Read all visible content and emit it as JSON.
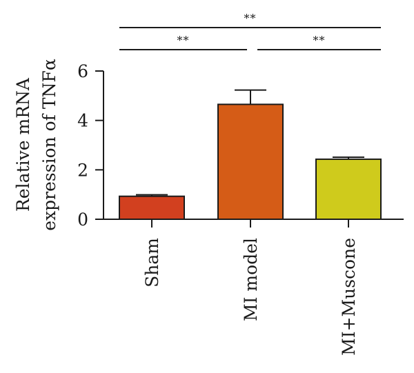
{
  "chart_data": {
    "type": "bar",
    "title": "",
    "xlabel": "",
    "ylabel": [
      "Relative mRNA",
      "expression of TNFα"
    ],
    "ylim": [
      0,
      6
    ],
    "yticks": [
      0,
      2,
      4,
      6
    ],
    "categories": [
      "Sham",
      "MI model",
      "MI+Muscone"
    ],
    "values": [
      0.93,
      4.65,
      2.43
    ],
    "errors": [
      0.06,
      0.58,
      0.08
    ],
    "colors": [
      "#d2401f",
      "#d55c17",
      "#cfcb1c"
    ],
    "grid": false,
    "significance": [
      {
        "from": 0,
        "to": 2,
        "label": "**",
        "level": 2
      },
      {
        "from": 0,
        "to": 1,
        "label": "**",
        "level": 1
      },
      {
        "from": 1,
        "to": 2,
        "label": "**",
        "level": 1
      }
    ]
  }
}
